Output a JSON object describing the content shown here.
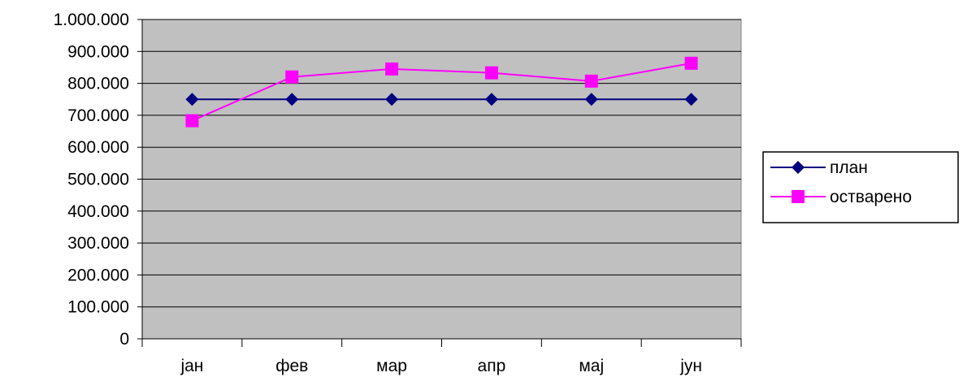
{
  "chart_data": {
    "type": "line",
    "categories": [
      "јан",
      "фев",
      "мар",
      "апр",
      "мај",
      "јун"
    ],
    "series": [
      {
        "name": "план",
        "values": [
          750000,
          750000,
          750000,
          750000,
          750000,
          750000
        ],
        "color": "#000080",
        "marker": "diamond"
      },
      {
        "name": "остварено",
        "values": [
          683000,
          820000,
          845000,
          833000,
          807000,
          863000
        ],
        "color": "#FF00FF",
        "marker": "square"
      }
    ],
    "yticks": [
      "0",
      "100.000",
      "200.000",
      "300.000",
      "400.000",
      "500.000",
      "600.000",
      "700.000",
      "800.000",
      "900.000",
      "1.000.000"
    ],
    "ylim": [
      0,
      1000000
    ],
    "grid": true,
    "plot_background": "#C0C0C0",
    "legend_position": "right"
  }
}
